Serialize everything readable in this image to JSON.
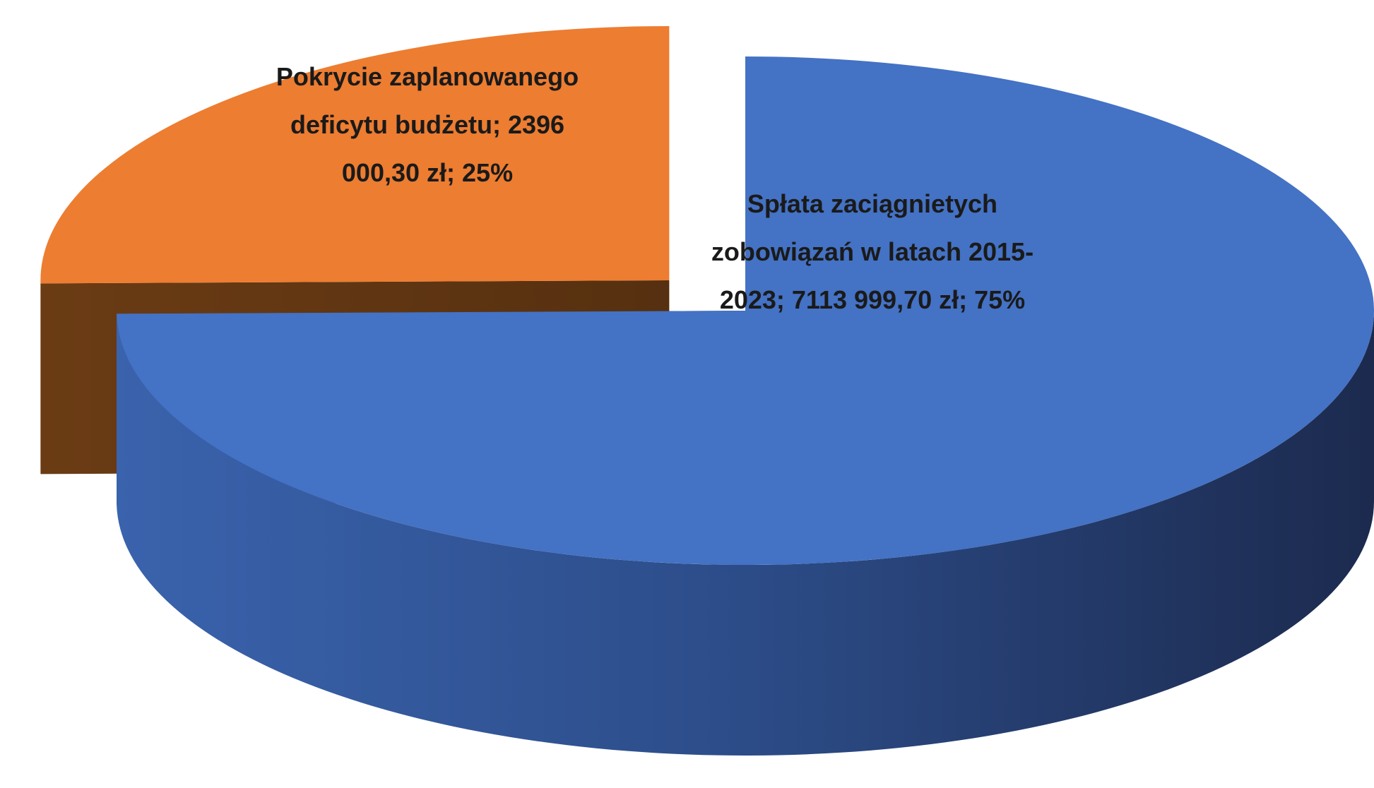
{
  "chart_data": {
    "type": "pie3d",
    "categories": [
      "Spłata zaciągnietych zobowiązań w latach 2015-2023",
      "Pokrycie zaplanowanego deficytu budżetu"
    ],
    "values": [
      7113999.7,
      2396000.3
    ],
    "value_labels": [
      "7113 999,70 zł",
      "2396 000,30 zł"
    ],
    "percent_labels": [
      "75%",
      "25%"
    ],
    "separator": "; ",
    "colors": [
      "#4472c4",
      "#ed7d31"
    ]
  }
}
